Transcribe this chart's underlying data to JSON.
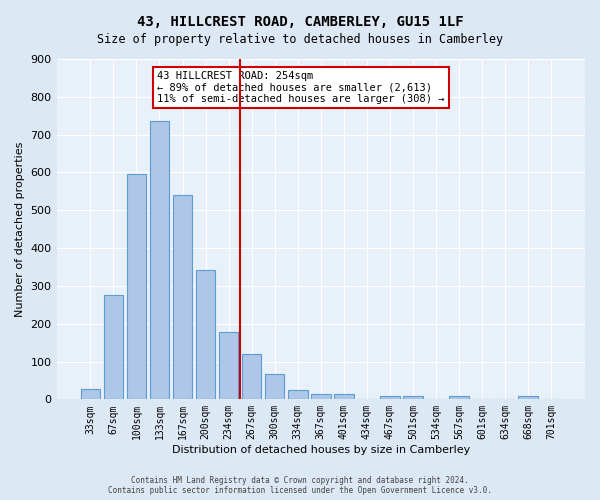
{
  "title": "43, HILLCREST ROAD, CAMBERLEY, GU15 1LF",
  "subtitle": "Size of property relative to detached houses in Camberley",
  "xlabel": "Distribution of detached houses by size in Camberley",
  "ylabel": "Number of detached properties",
  "bar_labels": [
    "33sqm",
    "67sqm",
    "100sqm",
    "133sqm",
    "167sqm",
    "200sqm",
    "234sqm",
    "267sqm",
    "300sqm",
    "334sqm",
    "367sqm",
    "401sqm",
    "434sqm",
    "467sqm",
    "501sqm",
    "534sqm",
    "567sqm",
    "601sqm",
    "634sqm",
    "668sqm",
    "701sqm"
  ],
  "bar_values": [
    27,
    275,
    595,
    737,
    540,
    343,
    178,
    120,
    68,
    25,
    15,
    15,
    0,
    9,
    10,
    0,
    9,
    0,
    0,
    9,
    0
  ],
  "bar_color": "#aec6e8",
  "bar_edge_color": "#5a9fd4",
  "reference_line_x": 6.5,
  "reference_line_color": "#cc0000",
  "annotation_text": "43 HILLCREST ROAD: 254sqm\n← 89% of detached houses are smaller (2,613)\n11% of semi-detached houses are larger (308) →",
  "annotation_box_color": "#ffffff",
  "annotation_box_edge_color": "#cc0000",
  "ylim": [
    0,
    900
  ],
  "yticks": [
    0,
    100,
    200,
    300,
    400,
    500,
    600,
    700,
    800,
    900
  ],
  "footer_line1": "Contains HM Land Registry data © Crown copyright and database right 2024.",
  "footer_line2": "Contains public sector information licensed under the Open Government Licence v3.0.",
  "bg_color": "#dde8f5",
  "plot_bg_color": "#e8f0fa"
}
